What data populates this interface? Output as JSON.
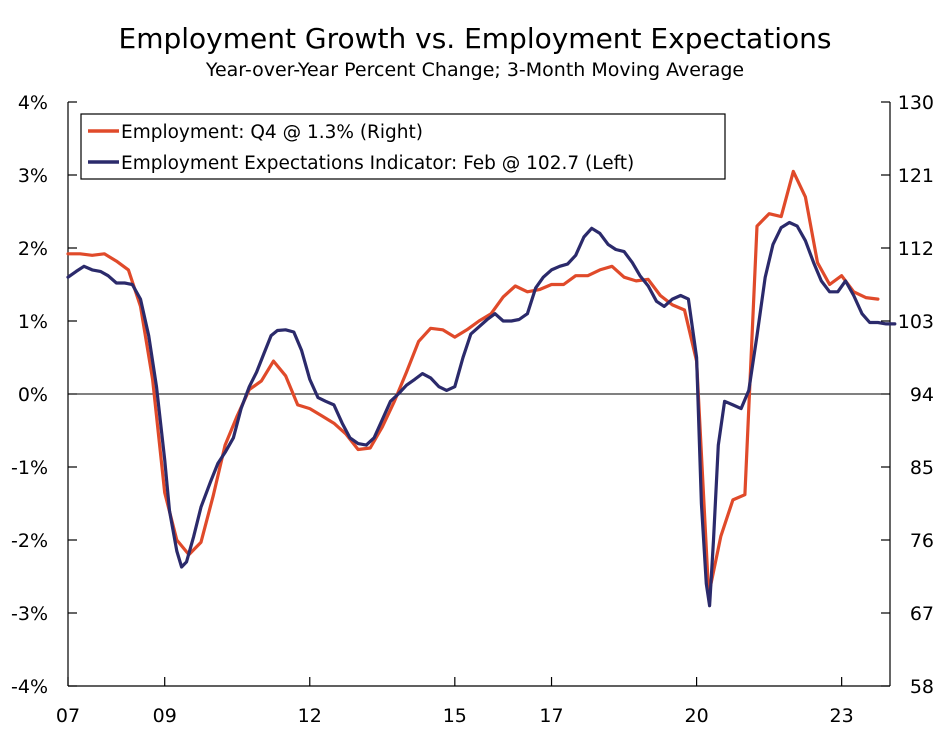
{
  "chart_data": {
    "type": "line",
    "title": "Employment Growth vs. Employment Expectations",
    "subtitle": "Year-over-Year Percent Change; 3-Month Moving Average",
    "left_axis": {
      "ylim": [
        -4,
        4
      ],
      "ticks": [
        4,
        3,
        2,
        1,
        0,
        -1,
        -2,
        -3,
        -4
      ],
      "tick_labels": [
        "4%",
        "3%",
        "2%",
        "1%",
        "0%",
        "-1%",
        "-2%",
        "-3%",
        "-4%"
      ]
    },
    "right_axis": {
      "ylim": [
        58,
        130
      ],
      "ticks": [
        130,
        121,
        112,
        103,
        94,
        85,
        76,
        67,
        58
      ],
      "tick_labels": [
        "130",
        "121",
        "112",
        "103",
        "94",
        "85",
        "76",
        "67",
        "58"
      ]
    },
    "x_axis": {
      "xlim": [
        2007.0,
        2024.0
      ],
      "ticks": [
        2007,
        2009,
        2012,
        2015,
        2017,
        2020,
        2023
      ],
      "tick_labels": [
        "07",
        "09",
        "12",
        "15",
        "17",
        "20",
        "23"
      ]
    },
    "zero_line": true,
    "legend": {
      "position": "top-left",
      "entries": [
        "Employment: Q4 @ 1.3% (Right)",
        "Employment Expectations Indicator: Feb @ 102.7 (Left)"
      ]
    },
    "series": [
      {
        "name": "Employment: Q4 @ 1.3% (Right)",
        "color": "#e04a2a",
        "axis": "left",
        "points": [
          [
            2007.0,
            1.92
          ],
          [
            2007.25,
            1.92
          ],
          [
            2007.5,
            1.9
          ],
          [
            2007.75,
            1.92
          ],
          [
            2008.0,
            1.82
          ],
          [
            2008.25,
            1.7
          ],
          [
            2008.5,
            1.2
          ],
          [
            2008.75,
            0.2
          ],
          [
            2009.0,
            -1.35
          ],
          [
            2009.25,
            -2.0
          ],
          [
            2009.5,
            -2.2
          ],
          [
            2009.75,
            -2.03
          ],
          [
            2010.0,
            -1.4
          ],
          [
            2010.25,
            -0.7
          ],
          [
            2010.5,
            -0.3
          ],
          [
            2010.75,
            0.06
          ],
          [
            2011.0,
            0.18
          ],
          [
            2011.25,
            0.45
          ],
          [
            2011.5,
            0.25
          ],
          [
            2011.75,
            -0.15
          ],
          [
            2012.0,
            -0.2
          ],
          [
            2012.25,
            -0.3
          ],
          [
            2012.5,
            -0.4
          ],
          [
            2012.75,
            -0.55
          ],
          [
            2013.0,
            -0.76
          ],
          [
            2013.25,
            -0.74
          ],
          [
            2013.5,
            -0.45
          ],
          [
            2013.75,
            -0.1
          ],
          [
            2014.0,
            0.3
          ],
          [
            2014.25,
            0.72
          ],
          [
            2014.5,
            0.9
          ],
          [
            2014.75,
            0.88
          ],
          [
            2015.0,
            0.78
          ],
          [
            2015.25,
            0.88
          ],
          [
            2015.5,
            1.0
          ],
          [
            2015.75,
            1.1
          ],
          [
            2016.0,
            1.33
          ],
          [
            2016.25,
            1.48
          ],
          [
            2016.5,
            1.4
          ],
          [
            2016.75,
            1.43
          ],
          [
            2017.0,
            1.5
          ],
          [
            2017.25,
            1.5
          ],
          [
            2017.5,
            1.62
          ],
          [
            2017.75,
            1.62
          ],
          [
            2018.0,
            1.7
          ],
          [
            2018.25,
            1.75
          ],
          [
            2018.5,
            1.6
          ],
          [
            2018.75,
            1.55
          ],
          [
            2019.0,
            1.57
          ],
          [
            2019.25,
            1.35
          ],
          [
            2019.5,
            1.22
          ],
          [
            2019.75,
            1.15
          ],
          [
            2020.0,
            0.45
          ],
          [
            2020.25,
            -2.75
          ],
          [
            2020.5,
            -1.95
          ],
          [
            2020.75,
            -1.45
          ],
          [
            2021.0,
            -1.38
          ],
          [
            2021.25,
            2.3
          ],
          [
            2021.5,
            2.47
          ],
          [
            2021.75,
            2.43
          ],
          [
            2022.0,
            3.05
          ],
          [
            2022.25,
            2.7
          ],
          [
            2022.5,
            1.8
          ],
          [
            2022.75,
            1.5
          ],
          [
            2023.0,
            1.62
          ],
          [
            2023.25,
            1.4
          ],
          [
            2023.5,
            1.32
          ],
          [
            2023.75,
            1.3
          ]
        ]
      },
      {
        "name": "Employment Expectations Indicator: Feb @ 102.7 (Left)",
        "color": "#2b2a6b",
        "axis": "left",
        "points": [
          [
            2007.0,
            1.6
          ],
          [
            2007.17,
            1.68
          ],
          [
            2007.33,
            1.75
          ],
          [
            2007.5,
            1.7
          ],
          [
            2007.67,
            1.68
          ],
          [
            2007.83,
            1.62
          ],
          [
            2008.0,
            1.52
          ],
          [
            2008.17,
            1.52
          ],
          [
            2008.33,
            1.5
          ],
          [
            2008.5,
            1.3
          ],
          [
            2008.67,
            0.8
          ],
          [
            2008.83,
            0.1
          ],
          [
            2009.0,
            -0.9
          ],
          [
            2009.1,
            -1.6
          ],
          [
            2009.25,
            -2.15
          ],
          [
            2009.35,
            -2.37
          ],
          [
            2009.45,
            -2.3
          ],
          [
            2009.6,
            -1.95
          ],
          [
            2009.75,
            -1.55
          ],
          [
            2009.95,
            -1.2
          ],
          [
            2010.1,
            -0.95
          ],
          [
            2010.25,
            -0.8
          ],
          [
            2010.42,
            -0.6
          ],
          [
            2010.58,
            -0.2
          ],
          [
            2010.75,
            0.1
          ],
          [
            2010.9,
            0.3
          ],
          [
            2011.05,
            0.55
          ],
          [
            2011.2,
            0.8
          ],
          [
            2011.33,
            0.87
          ],
          [
            2011.5,
            0.88
          ],
          [
            2011.67,
            0.85
          ],
          [
            2011.83,
            0.6
          ],
          [
            2012.0,
            0.2
          ],
          [
            2012.17,
            -0.05
          ],
          [
            2012.33,
            -0.1
          ],
          [
            2012.5,
            -0.15
          ],
          [
            2012.67,
            -0.4
          ],
          [
            2012.83,
            -0.6
          ],
          [
            2013.0,
            -0.68
          ],
          [
            2013.17,
            -0.7
          ],
          [
            2013.33,
            -0.6
          ],
          [
            2013.5,
            -0.35
          ],
          [
            2013.67,
            -0.1
          ],
          [
            2013.83,
            0.0
          ],
          [
            2014.0,
            0.12
          ],
          [
            2014.17,
            0.2
          ],
          [
            2014.33,
            0.28
          ],
          [
            2014.5,
            0.22
          ],
          [
            2014.67,
            0.1
          ],
          [
            2014.83,
            0.05
          ],
          [
            2015.0,
            0.1
          ],
          [
            2015.17,
            0.5
          ],
          [
            2015.33,
            0.82
          ],
          [
            2015.5,
            0.92
          ],
          [
            2015.67,
            1.02
          ],
          [
            2015.83,
            1.1
          ],
          [
            2016.0,
            1.0
          ],
          [
            2016.17,
            1.0
          ],
          [
            2016.33,
            1.02
          ],
          [
            2016.5,
            1.1
          ],
          [
            2016.67,
            1.45
          ],
          [
            2016.83,
            1.6
          ],
          [
            2017.0,
            1.7
          ],
          [
            2017.17,
            1.75
          ],
          [
            2017.33,
            1.78
          ],
          [
            2017.5,
            1.9
          ],
          [
            2017.67,
            2.15
          ],
          [
            2017.83,
            2.27
          ],
          [
            2018.0,
            2.2
          ],
          [
            2018.17,
            2.05
          ],
          [
            2018.33,
            1.98
          ],
          [
            2018.5,
            1.95
          ],
          [
            2018.67,
            1.8
          ],
          [
            2018.83,
            1.62
          ],
          [
            2019.0,
            1.48
          ],
          [
            2019.17,
            1.27
          ],
          [
            2019.33,
            1.2
          ],
          [
            2019.5,
            1.3
          ],
          [
            2019.67,
            1.35
          ],
          [
            2019.83,
            1.3
          ],
          [
            2020.0,
            0.5
          ],
          [
            2020.1,
            -1.5
          ],
          [
            2020.2,
            -2.6
          ],
          [
            2020.27,
            -2.9
          ],
          [
            2020.35,
            -2.0
          ],
          [
            2020.45,
            -0.7
          ],
          [
            2020.58,
            -0.1
          ],
          [
            2020.75,
            -0.15
          ],
          [
            2020.92,
            -0.2
          ],
          [
            2021.08,
            0.05
          ],
          [
            2021.25,
            0.8
          ],
          [
            2021.42,
            1.6
          ],
          [
            2021.58,
            2.05
          ],
          [
            2021.75,
            2.28
          ],
          [
            2021.92,
            2.35
          ],
          [
            2022.08,
            2.3
          ],
          [
            2022.25,
            2.1
          ],
          [
            2022.42,
            1.8
          ],
          [
            2022.58,
            1.55
          ],
          [
            2022.75,
            1.4
          ],
          [
            2022.92,
            1.4
          ],
          [
            2023.08,
            1.55
          ],
          [
            2023.25,
            1.35
          ],
          [
            2023.42,
            1.1
          ],
          [
            2023.58,
            0.98
          ],
          [
            2023.75,
            0.98
          ],
          [
            2023.92,
            0.96
          ],
          [
            2024.1,
            0.96
          ]
        ]
      }
    ]
  }
}
